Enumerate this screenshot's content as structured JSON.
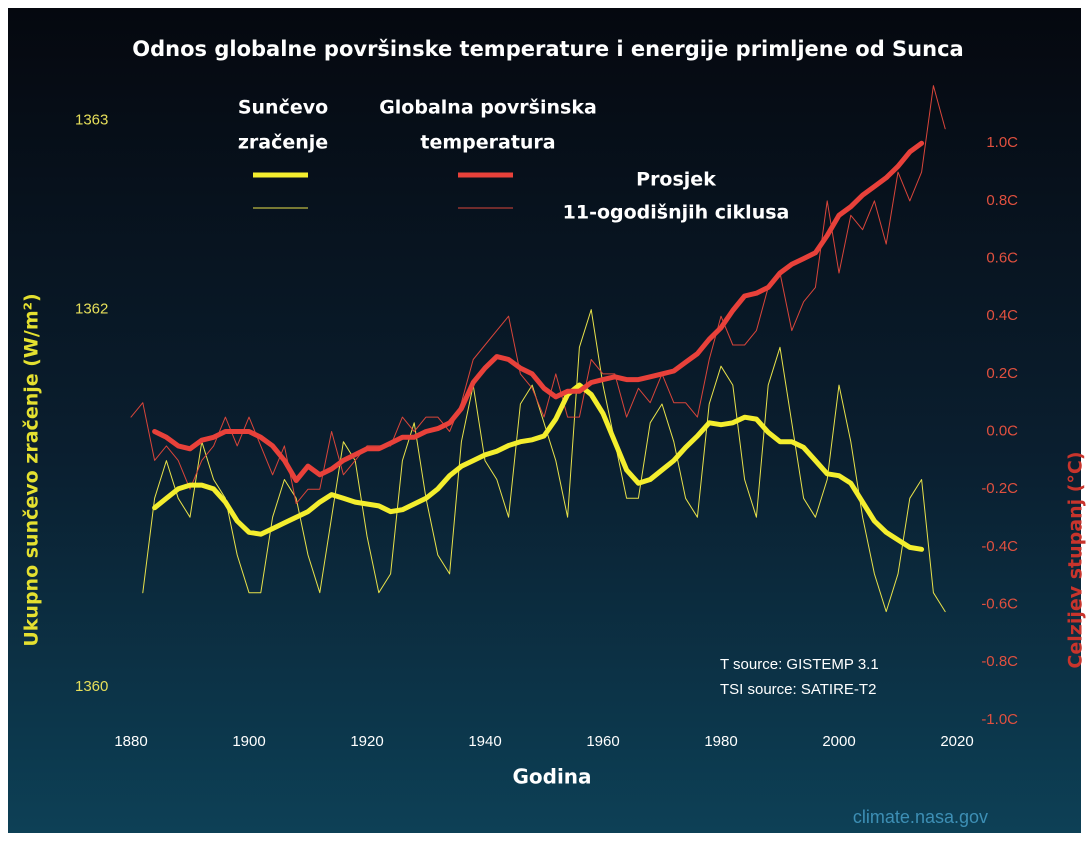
{
  "chart_data": {
    "type": "line",
    "title": "Odnos globalne površinske temperature i energije primljene od Sunca",
    "x_label": "Godina",
    "y_label": "Ukupno sunčevo zračenje (W/m²)",
    "y2_label": "Celzijev stupanj (°C)",
    "legend": {
      "columns": [
        [
          "Sunčevo",
          "zračenje"
        ],
        [
          "Globalna površinska",
          "temperatura"
        ]
      ],
      "average_label": [
        "Prosjek",
        "11-ogodišnjih ciklusa"
      ]
    },
    "annotations": [
      "T source: GISTEMP 3.1",
      "TSI source: SATIRE-T2"
    ],
    "credit": "climate.nasa.gov",
    "xlim": [
      1880,
      2020
    ],
    "xticks": [
      1880,
      1900,
      1920,
      1940,
      1960,
      1980,
      2000,
      2020
    ],
    "ylim": [
      1359.72,
      1363.11
    ],
    "yticks": [
      1360,
      1362,
      1363
    ],
    "y2lim": [
      -1.07,
      1.15
    ],
    "y2ticks": [
      {
        "value": -1.0,
        "label": "-1.0C"
      },
      {
        "value": -0.8,
        "label": "-0.8C"
      },
      {
        "value": -0.6,
        "label": "-0.6C"
      },
      {
        "value": -0.4,
        "label": "-0.4C"
      },
      {
        "value": -0.2,
        "label": "-0.2C"
      },
      {
        "value": 0.0,
        "label": "0.0C"
      },
      {
        "value": 0.2,
        "label": "0.2C"
      },
      {
        "value": 0.4,
        "label": "0.4C"
      },
      {
        "value": 0.6,
        "label": "0.6C"
      },
      {
        "value": 0.8,
        "label": "0.8C"
      },
      {
        "value": 1.0,
        "label": "1.0C"
      }
    ],
    "x": [
      1880,
      1882,
      1884,
      1886,
      1888,
      1890,
      1892,
      1894,
      1896,
      1898,
      1900,
      1902,
      1904,
      1906,
      1908,
      1910,
      1912,
      1914,
      1916,
      1918,
      1920,
      1922,
      1924,
      1926,
      1928,
      1930,
      1932,
      1934,
      1936,
      1938,
      1940,
      1942,
      1944,
      1946,
      1948,
      1950,
      1952,
      1954,
      1956,
      1958,
      1960,
      1962,
      1964,
      1966,
      1968,
      1970,
      1972,
      1974,
      1976,
      1978,
      1980,
      1982,
      1984,
      1986,
      1988,
      1990,
      1992,
      1994,
      1996,
      1998,
      2000,
      2002,
      2004,
      2006,
      2008,
      2010,
      2012,
      2014,
      2016,
      2018
    ],
    "series": [
      {
        "color": "#e8e24a",
        "width": "thin",
        "axis": "y",
        "legend_column": 0,
        "values": [
          null,
          1360.5,
          1361.0,
          1361.2,
          1361.0,
          1360.9,
          1361.3,
          1361.1,
          1361.0,
          1360.7,
          1360.5,
          1360.5,
          1360.9,
          1361.1,
          1361.0,
          1360.7,
          1360.5,
          1360.9,
          1361.3,
          1361.2,
          1360.8,
          1360.5,
          1360.6,
          1361.2,
          1361.4,
          1361.0,
          1360.7,
          1360.6,
          1361.3,
          1361.6,
          1361.2,
          1361.1,
          1360.9,
          1361.5,
          1361.6,
          1361.4,
          1361.2,
          1360.9,
          1361.8,
          1362.0,
          1361.6,
          1361.3,
          1361.0,
          1361.0,
          1361.4,
          1361.5,
          1361.3,
          1361.0,
          1360.9,
          1361.5,
          1361.7,
          1361.6,
          1361.1,
          1360.9,
          1361.6,
          1361.8,
          1361.4,
          1361.0,
          1360.9,
          1361.1,
          1361.6,
          1361.3,
          1360.9,
          1360.6,
          1360.4,
          1360.6,
          1361.0,
          1361.1,
          1360.5,
          1360.4
        ]
      },
      {
        "color": "#d9453a",
        "width": "thin",
        "axis": "y2",
        "legend_column": 1,
        "values": [
          0.05,
          0.1,
          -0.1,
          -0.05,
          -0.1,
          -0.2,
          -0.1,
          -0.05,
          0.05,
          -0.05,
          0.05,
          -0.05,
          -0.15,
          -0.05,
          -0.25,
          -0.2,
          -0.2,
          0.0,
          -0.15,
          -0.1,
          -0.05,
          -0.05,
          -0.05,
          0.05,
          0.0,
          0.05,
          0.05,
          0.0,
          0.1,
          0.25,
          0.3,
          0.35,
          0.4,
          0.2,
          0.15,
          0.05,
          0.2,
          0.05,
          0.05,
          0.25,
          0.2,
          0.2,
          0.05,
          0.15,
          0.1,
          0.2,
          0.1,
          0.1,
          0.05,
          0.25,
          0.4,
          0.3,
          0.3,
          0.35,
          0.5,
          0.55,
          0.35,
          0.45,
          0.5,
          0.8,
          0.55,
          0.75,
          0.7,
          0.8,
          0.65,
          0.9,
          0.8,
          0.9,
          1.2,
          1.05
        ]
      },
      {
        "color": "#f4ee2e",
        "width": "thick",
        "axis": "y",
        "legend_column": 0,
        "values": [
          null,
          null,
          1360.95,
          1361.0,
          1361.05,
          1361.07,
          1361.07,
          1361.05,
          1360.98,
          1360.88,
          1360.82,
          1360.81,
          1360.84,
          1360.87,
          1360.9,
          1360.93,
          1360.98,
          1361.02,
          1361.0,
          1360.98,
          1360.97,
          1360.96,
          1360.93,
          1360.94,
          1360.97,
          1361.0,
          1361.05,
          1361.12,
          1361.17,
          1361.2,
          1361.23,
          1361.25,
          1361.28,
          1361.3,
          1361.31,
          1361.33,
          1361.42,
          1361.55,
          1361.6,
          1361.55,
          1361.45,
          1361.3,
          1361.15,
          1361.08,
          1361.1,
          1361.15,
          1361.2,
          1361.27,
          1361.33,
          1361.4,
          1361.39,
          1361.4,
          1361.43,
          1361.42,
          1361.35,
          1361.3,
          1361.3,
          1361.27,
          1361.2,
          1361.13,
          1361.12,
          1361.08,
          1360.98,
          1360.88,
          1360.82,
          1360.78,
          1360.74,
          1360.73,
          null,
          null
        ]
      },
      {
        "color": "#e8413a",
        "width": "thick",
        "axis": "y2",
        "legend_column": 1,
        "values": [
          null,
          null,
          0.0,
          -0.02,
          -0.05,
          -0.06,
          -0.03,
          -0.02,
          0.0,
          0.0,
          0.0,
          -0.02,
          -0.05,
          -0.1,
          -0.17,
          -0.12,
          -0.15,
          -0.13,
          -0.1,
          -0.08,
          -0.06,
          -0.06,
          -0.04,
          -0.02,
          -0.02,
          0.0,
          0.01,
          0.03,
          0.08,
          0.17,
          0.22,
          0.26,
          0.25,
          0.22,
          0.2,
          0.15,
          0.12,
          0.14,
          0.14,
          0.17,
          0.18,
          0.19,
          0.18,
          0.18,
          0.19,
          0.2,
          0.21,
          0.24,
          0.27,
          0.32,
          0.36,
          0.42,
          0.47,
          0.48,
          0.5,
          0.55,
          0.58,
          0.6,
          0.62,
          0.68,
          0.75,
          0.78,
          0.82,
          0.85,
          0.88,
          0.92,
          0.97,
          1.0,
          null,
          null
        ]
      }
    ],
    "left_tick_color": "#e6df5a",
    "right_tick_color": "#e0503f"
  }
}
